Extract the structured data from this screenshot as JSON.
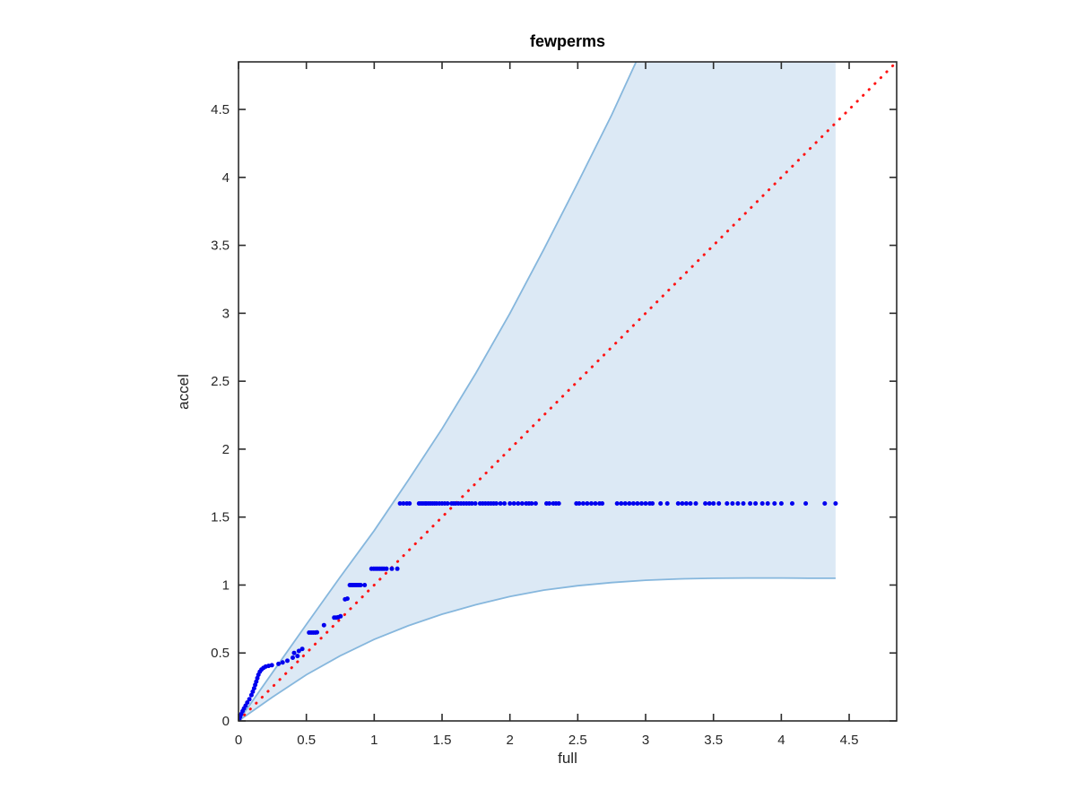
{
  "figure": {
    "title": "fewperms",
    "xlabel": "full",
    "ylabel": "accel"
  },
  "chart_data": {
    "type": "scatter",
    "title": "fewperms",
    "xlabel": "full",
    "ylabel": "accel",
    "xlim": [
      0,
      4.85
    ],
    "ylim": [
      0,
      4.85
    ],
    "grid": false,
    "legend": "none",
    "box": true,
    "tick_direction": "in",
    "x_ticks": {
      "values": [
        0,
        0.5,
        1,
        1.5,
        2,
        2.5,
        3,
        3.5,
        4,
        4.5
      ],
      "labels": [
        "0",
        "0.5",
        "1",
        "1.5",
        "2",
        "2.5",
        "3",
        "3.5",
        "4",
        "4.5"
      ]
    },
    "y_ticks": {
      "values": [
        0,
        0.5,
        1,
        1.5,
        2,
        2.5,
        3,
        3.5,
        4,
        4.5
      ],
      "labels": [
        "0",
        "0.5",
        "1",
        "1.5",
        "2",
        "2.5",
        "3",
        "3.5",
        "4",
        "4.5"
      ]
    },
    "colors": {
      "frame": "#2b2b2b",
      "band_fill": "#dce9f5",
      "band_edge": "#86b7dd",
      "identity_line": "#ff1414",
      "scatter": "#0000ee",
      "title_text": "#000000",
      "tick_text": "#262626"
    },
    "confidence_band": {
      "description": "shaded envelope, clipped at top, right end at x=4.4",
      "upper": [
        [
          0,
          0
        ],
        [
          0.25,
          0.355
        ],
        [
          0.5,
          0.71
        ],
        [
          0.75,
          1.06
        ],
        [
          1.0,
          1.4
        ],
        [
          1.25,
          1.77
        ],
        [
          1.5,
          2.15
        ],
        [
          1.75,
          2.56
        ],
        [
          2.0,
          3.0
        ],
        [
          2.25,
          3.47
        ],
        [
          2.5,
          3.96
        ],
        [
          2.75,
          4.46
        ],
        [
          2.93,
          4.85
        ]
      ],
      "lower": [
        [
          0,
          0
        ],
        [
          0.25,
          0.175
        ],
        [
          0.5,
          0.34
        ],
        [
          0.75,
          0.48
        ],
        [
          1.0,
          0.6
        ],
        [
          1.25,
          0.7
        ],
        [
          1.5,
          0.785
        ],
        [
          1.75,
          0.855
        ],
        [
          2.0,
          0.915
        ],
        [
          2.25,
          0.963
        ],
        [
          2.5,
          0.995
        ],
        [
          2.75,
          1.018
        ],
        [
          3.0,
          1.035
        ],
        [
          3.25,
          1.045
        ],
        [
          3.5,
          1.05
        ],
        [
          3.75,
          1.052
        ],
        [
          4.0,
          1.052
        ],
        [
          4.2,
          1.05
        ],
        [
          4.4,
          1.05
        ]
      ]
    },
    "identity_line": {
      "style": "dotted",
      "from": [
        0,
        0
      ],
      "to": [
        4.85,
        4.85
      ]
    },
    "scatter": {
      "marker": "point",
      "points": [
        [
          0.005,
          0.012
        ],
        [
          0.012,
          0.03
        ],
        [
          0.02,
          0.05
        ],
        [
          0.03,
          0.072
        ],
        [
          0.04,
          0.092
        ],
        [
          0.052,
          0.112
        ],
        [
          0.065,
          0.135
        ],
        [
          0.08,
          0.16
        ],
        [
          0.095,
          0.19
        ],
        [
          0.105,
          0.215
        ],
        [
          0.115,
          0.24
        ],
        [
          0.123,
          0.265
        ],
        [
          0.131,
          0.29
        ],
        [
          0.139,
          0.315
        ],
        [
          0.147,
          0.34
        ],
        [
          0.157,
          0.362
        ],
        [
          0.169,
          0.378
        ],
        [
          0.184,
          0.39
        ],
        [
          0.2,
          0.4
        ],
        [
          0.222,
          0.405
        ],
        [
          0.246,
          0.41
        ],
        [
          0.295,
          0.42
        ],
        [
          0.325,
          0.43
        ],
        [
          0.36,
          0.443
        ],
        [
          0.4,
          0.465
        ],
        [
          0.435,
          0.478
        ],
        [
          0.41,
          0.5
        ],
        [
          0.445,
          0.515
        ],
        [
          0.47,
          0.53
        ],
        [
          0.52,
          0.65
        ],
        [
          0.535,
          0.65
        ],
        [
          0.55,
          0.65
        ],
        [
          0.565,
          0.65
        ],
        [
          0.578,
          0.652
        ],
        [
          0.63,
          0.705
        ],
        [
          0.705,
          0.76
        ],
        [
          0.72,
          0.76
        ],
        [
          0.735,
          0.763
        ],
        [
          0.752,
          0.77
        ],
        [
          0.785,
          0.895
        ],
        [
          0.802,
          0.9
        ],
        [
          0.82,
          1.0
        ],
        [
          0.833,
          1.0
        ],
        [
          0.846,
          1.0
        ],
        [
          0.859,
          1.0
        ],
        [
          0.872,
          1.0
        ],
        [
          0.886,
          1.0
        ],
        [
          0.9,
          1.0
        ],
        [
          0.93,
          1.0
        ],
        [
          0.98,
          1.12
        ],
        [
          0.997,
          1.12
        ],
        [
          1.012,
          1.12
        ],
        [
          1.027,
          1.12
        ],
        [
          1.042,
          1.12
        ],
        [
          1.057,
          1.12
        ],
        [
          1.072,
          1.12
        ],
        [
          1.09,
          1.12
        ],
        [
          1.13,
          1.12
        ],
        [
          1.17,
          1.12
        ]
      ],
      "plateau": {
        "y": 1.6,
        "x": [
          1.19,
          1.215,
          1.24,
          1.26,
          1.33,
          1.345,
          1.36,
          1.375,
          1.385,
          1.4,
          1.415,
          1.43,
          1.445,
          1.46,
          1.48,
          1.5,
          1.52,
          1.54,
          1.57,
          1.585,
          1.6,
          1.62,
          1.64,
          1.66,
          1.68,
          1.7,
          1.72,
          1.745,
          1.78,
          1.8,
          1.82,
          1.84,
          1.86,
          1.88,
          1.9,
          1.93,
          1.96,
          2.0,
          2.03,
          2.06,
          2.09,
          2.12,
          2.14,
          2.16,
          2.19,
          2.27,
          2.29,
          2.32,
          2.34,
          2.36,
          2.49,
          2.51,
          2.54,
          2.57,
          2.6,
          2.63,
          2.66,
          2.68,
          2.79,
          2.82,
          2.85,
          2.88,
          2.91,
          2.94,
          2.97,
          3.0,
          3.03,
          3.05,
          3.11,
          3.16,
          3.24,
          3.27,
          3.3,
          3.33,
          3.37,
          3.44,
          3.47,
          3.5,
          3.54,
          3.6,
          3.64,
          3.68,
          3.72,
          3.77,
          3.81,
          3.86,
          3.9,
          3.95,
          4.0,
          4.08,
          4.18,
          4.32,
          4.4
        ]
      }
    }
  }
}
